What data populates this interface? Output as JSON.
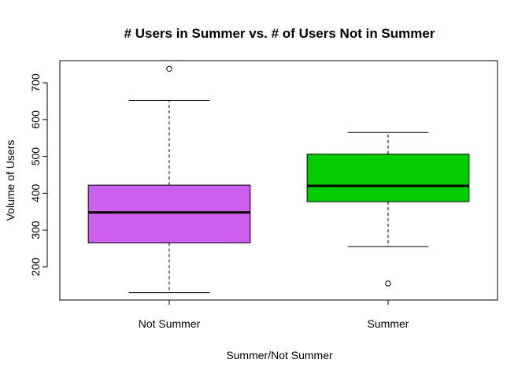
{
  "chart_data": {
    "type": "boxplot",
    "title": "# Users in Summer vs. # of Users Not in Summer",
    "xlabel": "Summer/Not Summer",
    "ylabel": "Volume of Users",
    "ylim": [
      110,
      760
    ],
    "yticks": [
      "200",
      "300",
      "400",
      "500",
      "600",
      "700"
    ],
    "categories": [
      "Not Summer",
      "Summer"
    ],
    "boxes": [
      {
        "name": "Not Summer",
        "color": "#cc5fee",
        "min": 130,
        "q1": 265,
        "median": 348,
        "q3": 422,
        "max": 652,
        "outliers": [
          738
        ]
      },
      {
        "name": "Summer",
        "color": "#00cc00",
        "min": 255,
        "q1": 377,
        "median": 420,
        "q3": 506,
        "max": 565,
        "outliers": [
          155
        ]
      }
    ]
  }
}
